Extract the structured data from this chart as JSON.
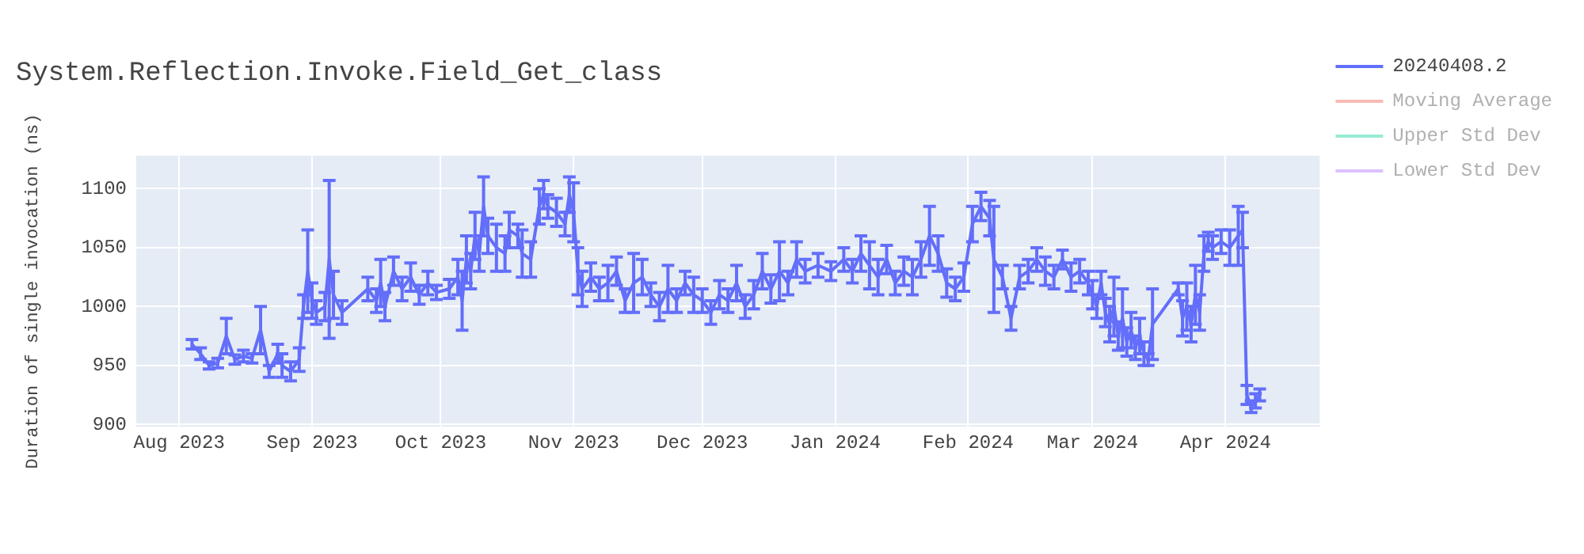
{
  "chart_data": {
    "type": "line",
    "title": "System.Reflection.Invoke.Field_Get_class",
    "ylabel": "Duration of single invocation (ns)",
    "x": [
      "2023-08-04",
      "2023-08-06",
      "2023-08-08",
      "2023-08-10",
      "2023-08-12",
      "2023-08-14",
      "2023-08-16",
      "2023-08-18",
      "2023-08-20",
      "2023-08-22",
      "2023-08-24",
      "2023-08-25",
      "2023-08-27",
      "2023-08-29",
      "2023-08-30",
      "2023-08-31",
      "2023-09-01",
      "2023-09-02",
      "2023-09-04",
      "2023-09-05",
      "2023-09-06",
      "2023-09-08",
      "2023-09-14",
      "2023-09-16",
      "2023-09-17",
      "2023-09-18",
      "2023-09-20",
      "2023-09-22",
      "2023-09-24",
      "2023-09-26",
      "2023-09-28",
      "2023-09-30",
      "2023-10-03",
      "2023-10-05",
      "2023-10-06",
      "2023-10-07",
      "2023-10-08",
      "2023-10-09",
      "2023-10-10",
      "2023-10-11",
      "2023-10-12",
      "2023-10-14",
      "2023-10-16",
      "2023-10-17",
      "2023-10-19",
      "2023-10-20",
      "2023-10-22",
      "2023-10-24",
      "2023-10-25",
      "2023-10-26",
      "2023-10-28",
      "2023-10-30",
      "2023-10-31",
      "2023-11-01",
      "2023-11-02",
      "2023-11-03",
      "2023-11-05",
      "2023-11-07",
      "2023-11-09",
      "2023-11-11",
      "2023-11-13",
      "2023-11-15",
      "2023-11-17",
      "2023-11-19",
      "2023-11-21",
      "2023-11-23",
      "2023-11-25",
      "2023-11-27",
      "2023-11-29",
      "2023-12-01",
      "2023-12-03",
      "2023-12-05",
      "2023-12-07",
      "2023-12-09",
      "2023-12-11",
      "2023-12-13",
      "2023-12-15",
      "2023-12-17",
      "2023-12-19",
      "2023-12-21",
      "2023-12-23",
      "2023-12-25",
      "2023-12-28",
      "2023-12-31",
      "2024-01-03",
      "2024-01-05",
      "2024-01-07",
      "2024-01-09",
      "2024-01-11",
      "2024-01-13",
      "2024-01-15",
      "2024-01-17",
      "2024-01-19",
      "2024-01-21",
      "2024-01-23",
      "2024-01-25",
      "2024-01-27",
      "2024-01-29",
      "2024-01-31",
      "2024-02-02",
      "2024-02-04",
      "2024-02-06",
      "2024-02-07",
      "2024-02-09",
      "2024-02-11",
      "2024-02-13",
      "2024-02-15",
      "2024-02-17",
      "2024-02-19",
      "2024-02-21",
      "2024-02-23",
      "2024-02-25",
      "2024-02-27",
      "2024-02-29",
      "2024-03-01",
      "2024-03-02",
      "2024-03-03",
      "2024-03-04",
      "2024-03-05",
      "2024-03-06",
      "2024-03-07",
      "2024-03-08",
      "2024-03-09",
      "2024-03-10",
      "2024-03-11",
      "2024-03-12",
      "2024-03-13",
      "2024-03-14",
      "2024-03-15",
      "2024-03-21",
      "2024-03-22",
      "2024-03-23",
      "2024-03-24",
      "2024-03-25",
      "2024-03-26",
      "2024-03-27",
      "2024-03-28",
      "2024-03-29",
      "2024-03-31",
      "2024-04-02",
      "2024-04-04",
      "2024-04-05",
      "2024-04-06",
      "2024-04-07",
      "2024-04-08",
      "2024-04-09"
    ],
    "series": [
      {
        "name": "20240408.2",
        "color": "#636efa",
        "values": [
          968,
          960,
          950,
          952,
          975,
          955,
          958,
          956,
          980,
          945,
          960,
          950,
          945,
          955,
          1000,
          1030,
          1005,
          995,
          1000,
          1040,
          1010,
          995,
          1015,
          1005,
          1020,
          1000,
          1030,
          1015,
          1025,
          1010,
          1020,
          1012,
          1015,
          1025,
          1005,
          1040,
          1030,
          1060,
          1045,
          1085,
          1060,
          1050,
          1045,
          1065,
          1060,
          1045,
          1040,
          1085,
          1095,
          1085,
          1080,
          1070,
          1095,
          1080,
          1030,
          1015,
          1025,
          1015,
          1020,
          1030,
          1005,
          1020,
          1025,
          1010,
          1000,
          1015,
          1005,
          1020,
          1010,
          1005,
          995,
          1010,
          1005,
          1020,
          1000,
          1010,
          1030,
          1015,
          1030,
          1020,
          1040,
          1030,
          1035,
          1030,
          1040,
          1030,
          1045,
          1035,
          1025,
          1040,
          1020,
          1030,
          1025,
          1040,
          1060,
          1045,
          1020,
          1015,
          1025,
          1070,
          1085,
          1075,
          1040,
          1025,
          990,
          1025,
          1030,
          1040,
          1030,
          1025,
          1040,
          1025,
          1030,
          1020,
          1010,
          1000,
          1020,
          995,
          985,
          1000,
          975,
          990,
          970,
          980,
          965,
          975,
          960,
          955,
          985,
          1015,
          990,
          1000,
          985,
          1010,
          995,
          1045,
          1055,
          1050,
          1055,
          1050,
          1060,
          1065,
          925,
          915,
          920,
          925
        ],
        "errors": [
          4,
          5,
          3,
          4,
          15,
          4,
          5,
          4,
          20,
          5,
          8,
          10,
          8,
          10,
          10,
          35,
          15,
          10,
          12,
          67,
          20,
          10,
          10,
          10,
          20,
          12,
          12,
          10,
          12,
          8,
          10,
          6,
          8,
          15,
          25,
          20,
          15,
          20,
          15,
          25,
          15,
          20,
          15,
          15,
          10,
          20,
          15,
          15,
          12,
          10,
          12,
          10,
          15,
          25,
          20,
          15,
          12,
          10,
          15,
          12,
          10,
          25,
          15,
          10,
          12,
          20,
          10,
          10,
          15,
          10,
          10,
          12,
          10,
          15,
          10,
          12,
          15,
          12,
          25,
          10,
          15,
          10,
          10,
          8,
          10,
          10,
          15,
          20,
          15,
          12,
          10,
          12,
          15,
          15,
          25,
          15,
          12,
          10,
          12,
          15,
          12,
          15,
          45,
          10,
          10,
          10,
          10,
          10,
          12,
          10,
          8,
          12,
          10,
          10,
          12,
          10,
          10,
          12,
          15,
          25,
          12,
          25,
          12,
          15,
          10,
          15,
          10,
          5,
          30,
          5,
          15,
          20,
          15,
          25,
          15,
          15,
          8,
          10,
          10,
          15,
          25,
          15,
          8,
          5,
          6,
          5
        ]
      },
      {
        "name": "Moving Average",
        "color": "#ef553b",
        "values": [
          null,
          null,
          null,
          null,
          null,
          null,
          null,
          null,
          null,
          null,
          null,
          null,
          null,
          null,
          null,
          null,
          null,
          null,
          null,
          null,
          null,
          null,
          null,
          null,
          null,
          null,
          null,
          null,
          null,
          null,
          null,
          null,
          null,
          null,
          null,
          null,
          null,
          null,
          null,
          null,
          null,
          null,
          null,
          null,
          null,
          null,
          null,
          null,
          null,
          null,
          null,
          null,
          null,
          null,
          null,
          null,
          null,
          null,
          null,
          null,
          null,
          null,
          null,
          null,
          null,
          null,
          null,
          null,
          null,
          null,
          null,
          null,
          null,
          null,
          null,
          null,
          null,
          null,
          null,
          null,
          null,
          null,
          null,
          null,
          null,
          null,
          null,
          null,
          null,
          null,
          null,
          null,
          null,
          null,
          null,
          null,
          null,
          null,
          null,
          null,
          null,
          null,
          null,
          null,
          null,
          null,
          null,
          null,
          null,
          null,
          null,
          null,
          null,
          null,
          null,
          null,
          null,
          null,
          null,
          null,
          null,
          null,
          null,
          null,
          null,
          null,
          null,
          null,
          null,
          null,
          null,
          null,
          null,
          null,
          null,
          null,
          null,
          null,
          null,
          null,
          null,
          null,
          null,
          null,
          null,
          null
        ]
      },
      {
        "name": "Upper Std Dev",
        "color": "#00cc96",
        "values": [
          null,
          null,
          null,
          null,
          null,
          null,
          null,
          null,
          null,
          null,
          null,
          null,
          null,
          null,
          null,
          null,
          null,
          null,
          null,
          null,
          null,
          null,
          null,
          null,
          null,
          null,
          null,
          null,
          null,
          null,
          null,
          null,
          null,
          null,
          null,
          null,
          null,
          null,
          null,
          null,
          null,
          null,
          null,
          null,
          null,
          null,
          null,
          null,
          null,
          null,
          null,
          null,
          null,
          null,
          null,
          null,
          null,
          null,
          null,
          null,
          null,
          null,
          null,
          null,
          null,
          null,
          null,
          null,
          null,
          null,
          null,
          null,
          null,
          null,
          null,
          null,
          null,
          null,
          null,
          null,
          null,
          null,
          null,
          null,
          null,
          null,
          null,
          null,
          null,
          null,
          null,
          null,
          null,
          null,
          null,
          null,
          null,
          null,
          null,
          null,
          null,
          null,
          null,
          null,
          null,
          null,
          null,
          null,
          null,
          null,
          null,
          null,
          null,
          null,
          null,
          null,
          null,
          null,
          null,
          null,
          null,
          null,
          null,
          null,
          null,
          null,
          null,
          null,
          null,
          null,
          null,
          null,
          null,
          null,
          null,
          null,
          null,
          null,
          null,
          null,
          null,
          null,
          null,
          null,
          null,
          null
        ]
      },
      {
        "name": "Lower Std Dev",
        "color": "#ab63fa",
        "values": [
          null,
          null,
          null,
          null,
          null,
          null,
          null,
          null,
          null,
          null,
          null,
          null,
          null,
          null,
          null,
          null,
          null,
          null,
          null,
          null,
          null,
          null,
          null,
          null,
          null,
          null,
          null,
          null,
          null,
          null,
          null,
          null,
          null,
          null,
          null,
          null,
          null,
          null,
          null,
          null,
          null,
          null,
          null,
          null,
          null,
          null,
          null,
          null,
          null,
          null,
          null,
          null,
          null,
          null,
          null,
          null,
          null,
          null,
          null,
          null,
          null,
          null,
          null,
          null,
          null,
          null,
          null,
          null,
          null,
          null,
          null,
          null,
          null,
          null,
          null,
          null,
          null,
          null,
          null,
          null,
          null,
          null,
          null,
          null,
          null,
          null,
          null,
          null,
          null,
          null,
          null,
          null,
          null,
          null,
          null,
          null,
          null,
          null,
          null,
          null,
          null,
          null,
          null,
          null,
          null,
          null,
          null,
          null,
          null,
          null,
          null,
          null,
          null,
          null,
          null,
          null,
          null,
          null,
          null,
          null,
          null,
          null,
          null,
          null,
          null,
          null,
          null,
          null,
          null,
          null,
          null,
          null,
          null,
          null,
          null,
          null,
          null,
          null,
          null,
          null,
          null,
          null,
          null,
          null,
          null,
          null
        ]
      }
    ],
    "xlim": [
      "2023-07-22",
      "2024-04-23"
    ],
    "xticks": [
      {
        "value": "2023-08-01",
        "label": "Aug 2023"
      },
      {
        "value": "2023-09-01",
        "label": "Sep 2023"
      },
      {
        "value": "2023-10-01",
        "label": "Oct 2023"
      },
      {
        "value": "2023-11-01",
        "label": "Nov 2023"
      },
      {
        "value": "2023-12-01",
        "label": "Dec 2023"
      },
      {
        "value": "2024-01-01",
        "label": "Jan 2024"
      },
      {
        "value": "2024-02-01",
        "label": "Feb 2024"
      },
      {
        "value": "2024-03-01",
        "label": "Mar 2024"
      },
      {
        "value": "2024-04-01",
        "label": "Apr 2024"
      }
    ],
    "ylim": [
      898,
      1128
    ],
    "yticks": [
      900,
      950,
      1000,
      1050,
      1100
    ],
    "grid": true,
    "legend": "top right",
    "marker": "none",
    "line_style": "solid"
  }
}
